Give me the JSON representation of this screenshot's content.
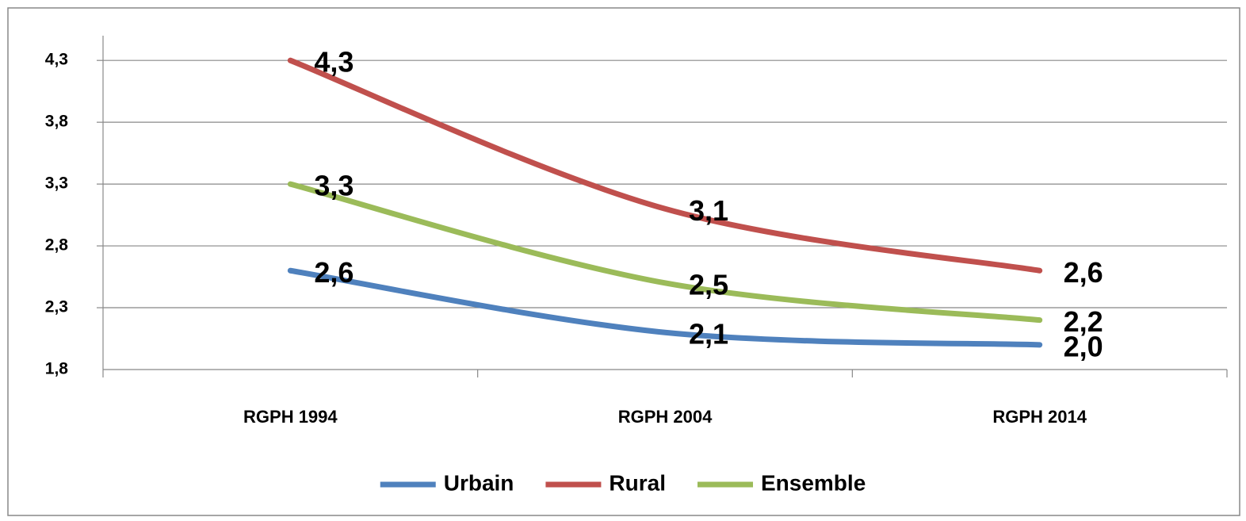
{
  "chart_data": {
    "type": "line",
    "categories": [
      "RGPH 1994",
      "RGPH 2004",
      "RGPH 2014"
    ],
    "series": [
      {
        "name": "Urbain",
        "color": "#4f81bd",
        "values": [
          2.6,
          2.1,
          2.0
        ],
        "value_labels": [
          "2,6",
          "2,1",
          "2,0"
        ]
      },
      {
        "name": "Rural",
        "color": "#c0504d",
        "values": [
          4.3,
          3.1,
          2.6
        ],
        "value_labels": [
          "4,3",
          "3,1",
          "2,6"
        ]
      },
      {
        "name": "Ensemble",
        "color": "#9bbb59",
        "values": [
          3.3,
          2.5,
          2.2
        ],
        "value_labels": [
          "3,3",
          "2,5",
          "2,2"
        ]
      }
    ],
    "ylim": [
      1.8,
      4.5
    ],
    "yticks": [
      {
        "value": 1.8,
        "label": "1,8"
      },
      {
        "value": 2.3,
        "label": "2,3"
      },
      {
        "value": 2.8,
        "label": "2,8"
      },
      {
        "value": 3.3,
        "label": "3,3"
      },
      {
        "value": 3.8,
        "label": "3,8"
      },
      {
        "value": 4.3,
        "label": "4,3"
      }
    ],
    "grid": true,
    "smooth": true,
    "legend": "bottom"
  }
}
